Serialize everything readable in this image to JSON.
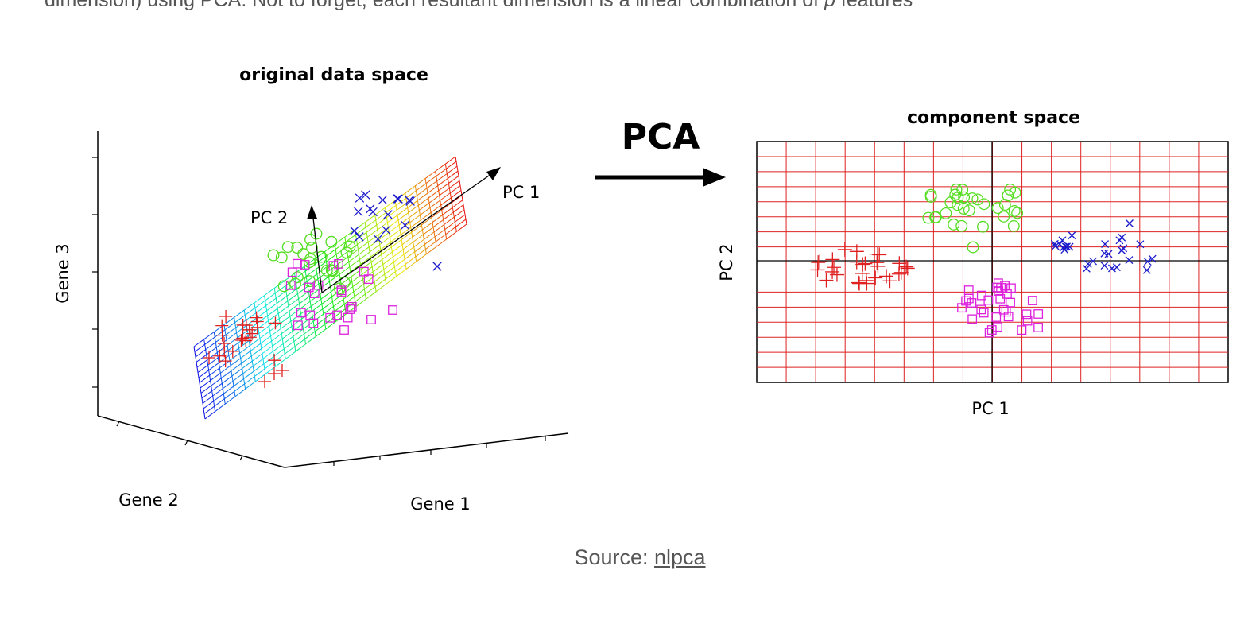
{
  "intro": {
    "before": "dimension) using PCA. Not to forget, each resultant dimension is a linear combination of ",
    "var": "p",
    "after": " features"
  },
  "figure": {
    "left_title": "original data space",
    "right_title": "component space",
    "arrow_label": "PCA",
    "axis_gene1": "Gene 1",
    "axis_gene2": "Gene 2",
    "axis_gene3": "Gene 3",
    "pc1": "PC 1",
    "pc2": "PC 2",
    "right_xlabel": "PC 1",
    "right_ylabel": "PC 2"
  },
  "colors": {
    "red": "#e02020",
    "green": "#55dd22",
    "blue": "#1a1acc",
    "magenta": "#dd22dd",
    "grid": "#dd2222"
  },
  "caption": {
    "prefix": "Source: ",
    "link": "nlpca"
  }
}
